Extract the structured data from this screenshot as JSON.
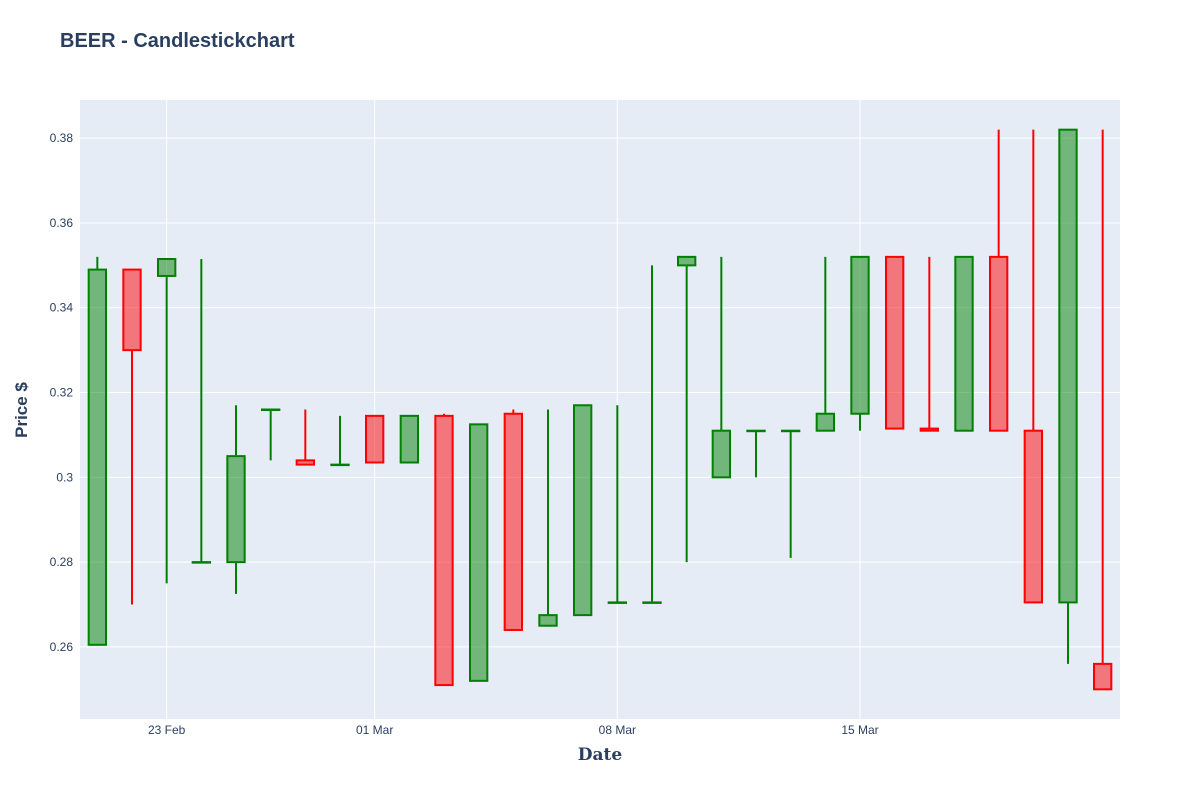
{
  "chart_data": {
    "type": "candlestick",
    "title": "BEER - Candlestickchart",
    "xlabel": "Date",
    "ylabel": "Price $",
    "ylim": [
      0.243,
      0.389
    ],
    "y_ticks": [
      "0.26",
      "0.28",
      "0.3",
      "0.32",
      "0.34",
      "0.36",
      "0.38"
    ],
    "x_tick_labels": [
      {
        "label": "23 Feb",
        "date": "2021-02-23"
      },
      {
        "label": "01 Mar",
        "date": "2021-03-01"
      },
      {
        "label": "08 Mar",
        "date": "2021-03-08"
      },
      {
        "label": "15 Mar",
        "date": "2021-03-15"
      }
    ],
    "xlim": [
      "2021-02-20T12:00",
      "2021-03-22T12:00"
    ],
    "grid": true,
    "increasing_color": "#008000",
    "decreasing_color": "#ff0000",
    "candles": [
      {
        "date": "2021-02-21",
        "open": 0.2605,
        "high": 0.352,
        "low": 0.2605,
        "close": 0.349
      },
      {
        "date": "2021-02-22",
        "open": 0.349,
        "high": 0.349,
        "low": 0.27,
        "close": 0.33
      },
      {
        "date": "2021-02-23",
        "open": 0.3475,
        "high": 0.3515,
        "low": 0.275,
        "close": 0.3515
      },
      {
        "date": "2021-02-24",
        "open": 0.28,
        "high": 0.3515,
        "low": 0.28,
        "close": 0.28
      },
      {
        "date": "2021-02-25",
        "open": 0.28,
        "high": 0.317,
        "low": 0.2725,
        "close": 0.305
      },
      {
        "date": "2021-02-26",
        "open": 0.316,
        "high": 0.316,
        "low": 0.304,
        "close": 0.316
      },
      {
        "date": "2021-02-27",
        "open": 0.304,
        "high": 0.316,
        "low": 0.303,
        "close": 0.303
      },
      {
        "date": "2021-02-28",
        "open": 0.303,
        "high": 0.3145,
        "low": 0.303,
        "close": 0.303
      },
      {
        "date": "2021-03-01",
        "open": 0.3145,
        "high": 0.3145,
        "low": 0.3035,
        "close": 0.3035
      },
      {
        "date": "2021-03-02",
        "open": 0.3035,
        "high": 0.3145,
        "low": 0.3035,
        "close": 0.3145
      },
      {
        "date": "2021-03-03",
        "open": 0.3145,
        "high": 0.315,
        "low": 0.251,
        "close": 0.251
      },
      {
        "date": "2021-03-04",
        "open": 0.252,
        "high": 0.3125,
        "low": 0.252,
        "close": 0.3125
      },
      {
        "date": "2021-03-05",
        "open": 0.315,
        "high": 0.316,
        "low": 0.264,
        "close": 0.264
      },
      {
        "date": "2021-03-06",
        "open": 0.265,
        "high": 0.316,
        "low": 0.265,
        "close": 0.2675
      },
      {
        "date": "2021-03-07",
        "open": 0.2675,
        "high": 0.317,
        "low": 0.2675,
        "close": 0.317
      },
      {
        "date": "2021-03-08",
        "open": 0.2705,
        "high": 0.317,
        "low": 0.2705,
        "close": 0.2705
      },
      {
        "date": "2021-03-09",
        "open": 0.2705,
        "high": 0.35,
        "low": 0.2705,
        "close": 0.2705
      },
      {
        "date": "2021-03-10",
        "open": 0.35,
        "high": 0.352,
        "low": 0.28,
        "close": 0.352
      },
      {
        "date": "2021-03-11",
        "open": 0.3,
        "high": 0.352,
        "low": 0.3,
        "close": 0.311
      },
      {
        "date": "2021-03-12",
        "open": 0.311,
        "high": 0.311,
        "low": 0.3,
        "close": 0.311
      },
      {
        "date": "2021-03-13",
        "open": 0.311,
        "high": 0.311,
        "low": 0.281,
        "close": 0.311
      },
      {
        "date": "2021-03-14",
        "open": 0.311,
        "high": 0.352,
        "low": 0.311,
        "close": 0.315
      },
      {
        "date": "2021-03-15",
        "open": 0.315,
        "high": 0.352,
        "low": 0.311,
        "close": 0.352
      },
      {
        "date": "2021-03-16",
        "open": 0.352,
        "high": 0.352,
        "low": 0.3115,
        "close": 0.3115
      },
      {
        "date": "2021-03-17",
        "open": 0.3115,
        "high": 0.352,
        "low": 0.311,
        "close": 0.311
      },
      {
        "date": "2021-03-18",
        "open": 0.311,
        "high": 0.352,
        "low": 0.311,
        "close": 0.352
      },
      {
        "date": "2021-03-19",
        "open": 0.352,
        "high": 0.382,
        "low": 0.311,
        "close": 0.311
      },
      {
        "date": "2021-03-20",
        "open": 0.311,
        "high": 0.382,
        "low": 0.2705,
        "close": 0.2705
      },
      {
        "date": "2021-03-21",
        "open": 0.2705,
        "high": 0.382,
        "low": 0.256,
        "close": 0.382
      },
      {
        "date": "2021-03-22",
        "open": 0.256,
        "high": 0.382,
        "low": 0.25,
        "close": 0.25
      }
    ]
  }
}
